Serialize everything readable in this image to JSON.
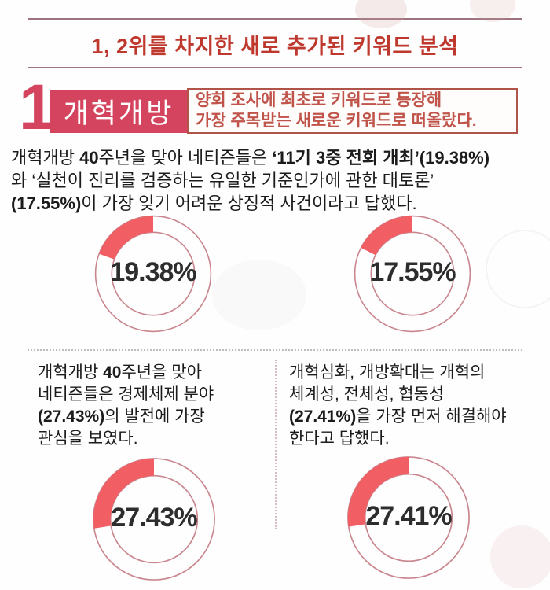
{
  "title": {
    "text": "1, 2위를 차지한 새로 추가된 키워드 분석",
    "color": "#bf382e"
  },
  "rank_section": {
    "rank_number": "1",
    "keyword": "개혁개방",
    "description_lines": [
      "양회 조사에 최초로 키워드로 등장해",
      "가장 주목받는 새로운 키워드로 떠올랐다."
    ],
    "box_color": "#d5445e",
    "border_color": "#b0544a",
    "description_color": "#c0544a"
  },
  "paragraph": {
    "lines": [
      [
        {
          "t": "개혁개방 "
        },
        {
          "t": "40",
          "b": true
        },
        {
          "t": "주년을 맞아 네티즌들은 "
        },
        {
          "t": "‘11기 3중 전회 개최’(19.38%)",
          "b": true
        }
      ],
      [
        {
          "t": "와 ‘실천이 진리를 검증하는 유일한 기준인가에 관한 대토론’"
        }
      ],
      [
        {
          "t": "(17.55%)",
          "b": true
        },
        {
          "t": "이 가장 잊기 어려운 상징적 사건이라고 답했다."
        }
      ]
    ]
  },
  "left_note": {
    "lines": [
      [
        {
          "t": "개혁개방 "
        },
        {
          "t": "40",
          "b": true
        },
        {
          "t": "주년을 맞아"
        }
      ],
      [
        {
          "t": "네티즌들은 경제체제 분야"
        }
      ],
      [
        {
          "t": "(27.43%)",
          "b": true
        },
        {
          "t": "의 발전에 가장"
        }
      ],
      [
        {
          "t": "관심을 보였다."
        }
      ]
    ]
  },
  "right_note": {
    "lines": [
      [
        {
          "t": "개혁심화, 개방확대는 개혁의"
        }
      ],
      [
        {
          "t": "체계성, 전체성, 협동성"
        }
      ],
      [
        {
          "t": "(27.41%)",
          "b": true
        },
        {
          "t": "을 가장 먼저 해결해야"
        }
      ],
      [
        {
          "t": "한다고 답했다."
        }
      ]
    ]
  },
  "donut_style": {
    "arc_color": "#f15e63",
    "ring_color": "#c9868e",
    "label_color": "#2d2d2d",
    "start": "top",
    "direction": "counterclockwise"
  },
  "chart_data": [
    {
      "type": "donut",
      "value": 19.38,
      "total": 100,
      "label": "19.38%"
    },
    {
      "type": "donut",
      "value": 17.55,
      "total": 100,
      "label": "17.55%"
    },
    {
      "type": "donut",
      "value": 27.43,
      "total": 100,
      "label": "27.43%"
    },
    {
      "type": "donut",
      "value": 27.41,
      "total": 100,
      "label": "27.41%"
    }
  ]
}
